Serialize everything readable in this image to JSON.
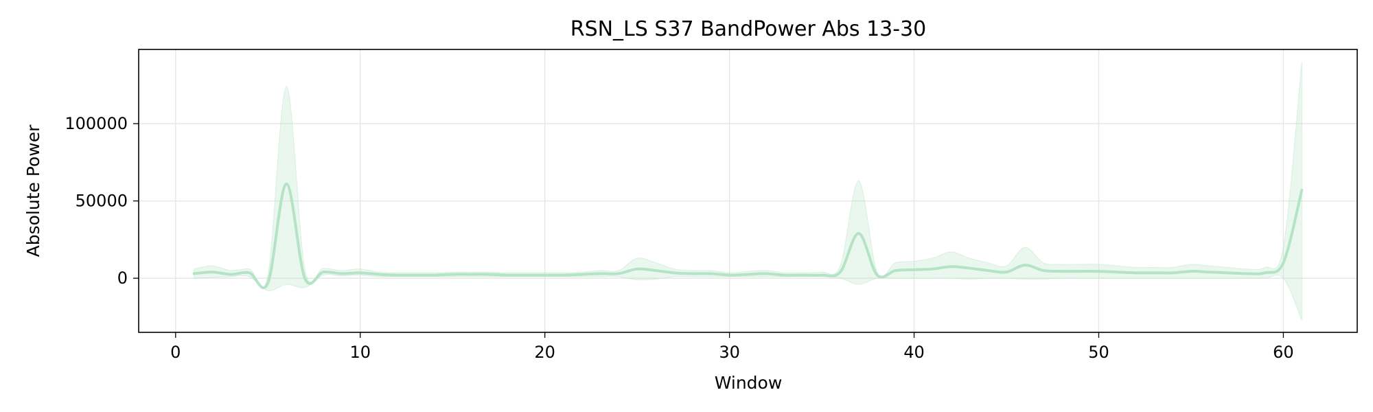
{
  "chart_data": {
    "type": "line",
    "title": "RSN_LS S37 BandPower Abs 13-30",
    "xlabel": "Window",
    "ylabel": "Absolute Power",
    "xlim": [
      -2,
      64
    ],
    "ylim": [
      -35000,
      148000
    ],
    "xticks": [
      0,
      10,
      20,
      30,
      40,
      50,
      60
    ],
    "yticks": [
      0,
      50000,
      100000
    ],
    "grid": true,
    "legend": "none",
    "colors": {
      "line": "#b5e3c5",
      "band": "#b5e3c5"
    },
    "series": [
      {
        "x": [
          1,
          2,
          3,
          4,
          5,
          6,
          7,
          8,
          9,
          10,
          11,
          12,
          13,
          14,
          15,
          16,
          17,
          18,
          19,
          20,
          21,
          22,
          23,
          24,
          25,
          26,
          27,
          28,
          29,
          30,
          31,
          32,
          33,
          34,
          35,
          36,
          37,
          38,
          39,
          40,
          41,
          42,
          43,
          44,
          45,
          46,
          47,
          48,
          49,
          50,
          51,
          52,
          53,
          54,
          55,
          56,
          57,
          58,
          59,
          60,
          61
        ],
        "y": [
          3000,
          4000,
          2500,
          3500,
          -3000,
          61000,
          0,
          4000,
          3000,
          3500,
          2500,
          2000,
          2000,
          2000,
          2500,
          2500,
          2500,
          2000,
          2000,
          2000,
          2000,
          2500,
          3000,
          3000,
          6000,
          5000,
          3500,
          3000,
          3000,
          2000,
          2500,
          3000,
          2000,
          2000,
          2000,
          4000,
          29000,
          2000,
          5000,
          5500,
          6000,
          7500,
          6500,
          5000,
          4000,
          8500,
          5000,
          4500,
          4500,
          4500,
          4000,
          3500,
          3500,
          3500,
          4500,
          4000,
          3500,
          3000,
          3500,
          10000,
          57000
        ],
        "lower": [
          0,
          500,
          1000,
          1000,
          -8000,
          -4000,
          -6000,
          2000,
          1500,
          2000,
          1000,
          1000,
          1000,
          1000,
          1000,
          1000,
          1000,
          1000,
          1000,
          1000,
          1000,
          1000,
          1000,
          1000,
          -1000,
          -500,
          1000,
          1000,
          1000,
          1000,
          1000,
          1000,
          1000,
          1000,
          1000,
          0,
          -4000,
          0,
          0,
          0,
          0,
          0,
          -500,
          0,
          0,
          -500,
          -500,
          0,
          0,
          0,
          0,
          0,
          0,
          0,
          0,
          0,
          0,
          0,
          0,
          0,
          -27000
        ],
        "upper": [
          6000,
          8000,
          5000,
          6000,
          2000,
          124000,
          6000,
          6500,
          5000,
          6000,
          4000,
          3500,
          3500,
          3500,
          4000,
          4000,
          4000,
          3500,
          3500,
          3500,
          3500,
          4000,
          5000,
          5000,
          13000,
          10000,
          6000,
          5000,
          5000,
          3500,
          4500,
          5000,
          3500,
          3500,
          4000,
          8000,
          63000,
          4000,
          10000,
          11000,
          13000,
          17000,
          13000,
          10000,
          8000,
          20000,
          10000,
          9000,
          9000,
          9000,
          8000,
          7000,
          7000,
          7000,
          9000,
          8000,
          7000,
          6000,
          7000,
          20000,
          140000
        ]
      }
    ]
  }
}
